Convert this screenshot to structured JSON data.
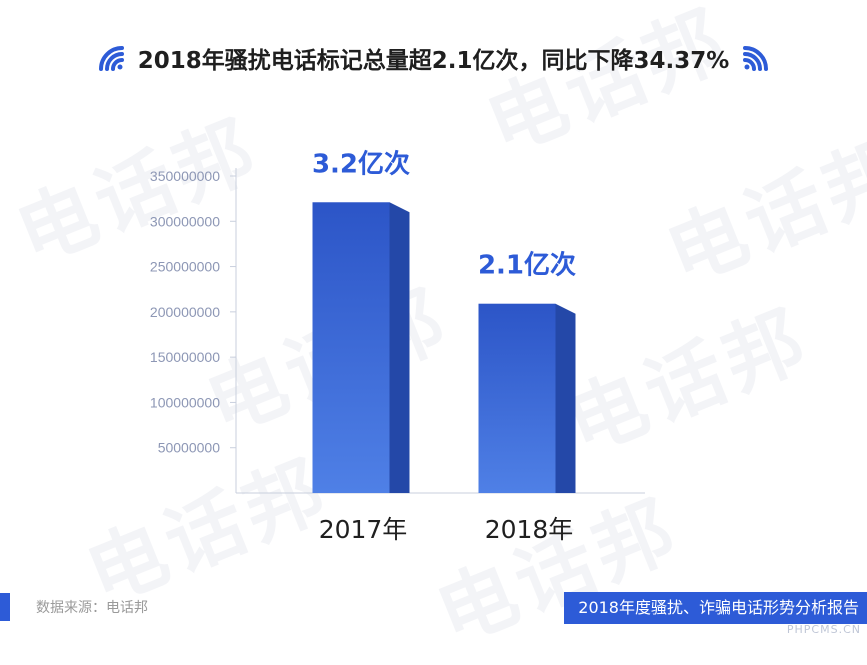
{
  "header": {
    "title": "2018年骚扰电话标记总量超2.1亿次，同比下降34.37%"
  },
  "watermark": {
    "text": "电话邦"
  },
  "chart_data": {
    "type": "bar",
    "title": "2018年骚扰电话标记总量超2.1亿次，同比下降34.37%",
    "xlabel": "",
    "ylabel": "",
    "categories": [
      "2017年",
      "2018年"
    ],
    "values": [
      321000000,
      209000000
    ],
    "data_labels": [
      "3.2亿次",
      "2.1亿次"
    ],
    "ylim": [
      0,
      350000000
    ],
    "yticks": [
      50000000,
      100000000,
      150000000,
      200000000,
      250000000,
      300000000,
      350000000
    ],
    "ytick_labels": [
      "50000000",
      "100000000",
      "150000000",
      "200000000",
      "250000000",
      "300000000",
      "350000000"
    ],
    "grid": false,
    "bar_color_top": "#2c55c7",
    "bar_color_bottom": "#4f80e6",
    "bar_side_color": "#2448a8",
    "label_color": "#2d5bd7"
  },
  "footer": {
    "source": "数据来源：电话邦",
    "report": "2018年度骚扰、诈骗电话形势分析报告",
    "site": "PHPCMS.CN"
  },
  "colors": {
    "accent": "#2d5bd7",
    "axis": "#c9cfdd",
    "tick_text": "#8d97b5"
  }
}
